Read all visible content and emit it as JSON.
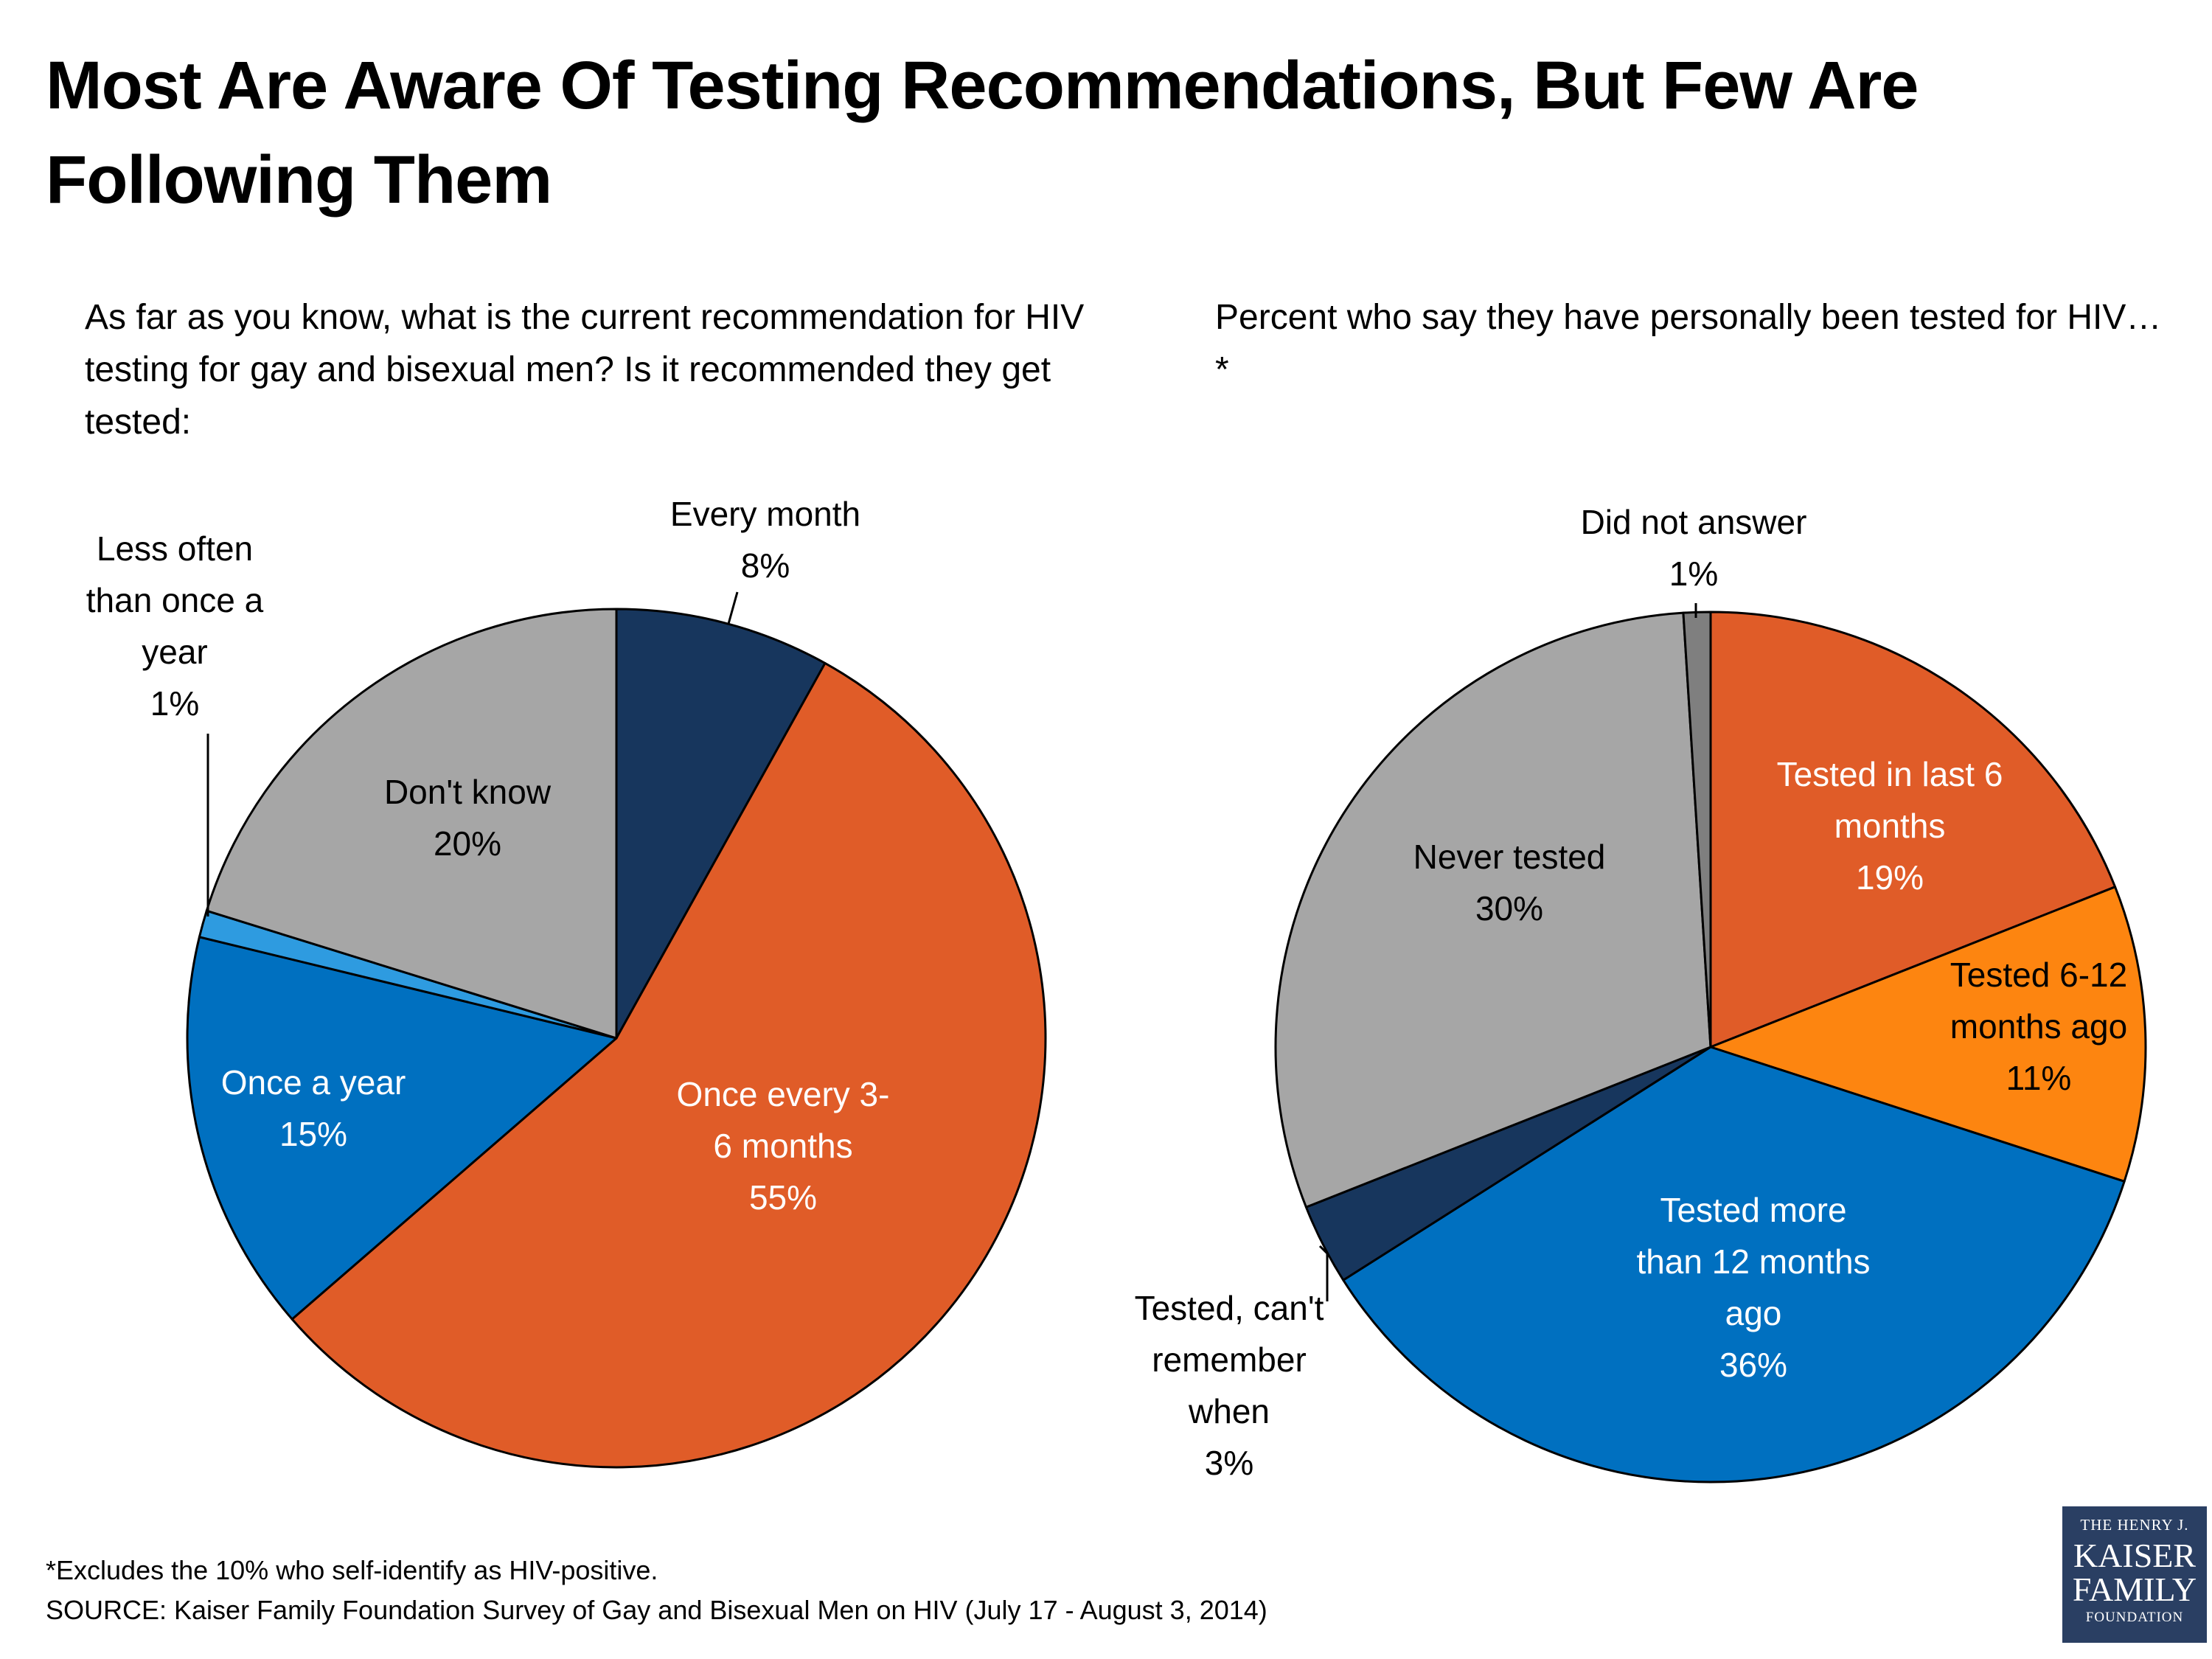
{
  "title": "Most Are Aware Of Testing Recommendations, But Few Are Following Them",
  "chart_data": [
    {
      "type": "pie",
      "title": "As far as you know, what is the current recommendation for HIV testing for gay and bisexual men?  Is it recommended they get tested:",
      "slices": [
        {
          "name": "Every month",
          "value": 8,
          "label": "8%",
          "color": "#17365d"
        },
        {
          "name": "Once every 3-6 months",
          "value": 55,
          "label": "55%",
          "color": "#e05c28"
        },
        {
          "name": "Once a year",
          "value": 15,
          "label": "15%",
          "color": "#0070c0"
        },
        {
          "name": "Less often than once a year",
          "value": 1,
          "label": "1%",
          "color": "#2e9be0"
        },
        {
          "name": "Don't know",
          "value": 20,
          "label": "20%",
          "color": "#a6a6a6"
        }
      ]
    },
    {
      "type": "pie",
      "title": "Percent who say they have personally been tested for HIV…*",
      "slices": [
        {
          "name": "Tested in last 6 months",
          "value": 19,
          "label": "19%",
          "color": "#e05c28"
        },
        {
          "name": "Tested 6-12 months ago",
          "value": 11,
          "label": "11%",
          "color": "#fd8510"
        },
        {
          "name": "Tested more than 12 months ago",
          "value": 36,
          "label": "36%",
          "color": "#0070c0"
        },
        {
          "name": "Tested, can't remember when",
          "value": 3,
          "label": "3%",
          "color": "#17365d"
        },
        {
          "name": "Never tested",
          "value": 30,
          "label": "30%",
          "color": "#a6a6a6"
        },
        {
          "name": "Did not answer",
          "value": 1,
          "label": "1%",
          "color": "#7f7f7f"
        }
      ]
    }
  ],
  "label_lines": {
    "left": [
      [
        "Every month",
        "8%"
      ],
      [
        "Once every 3-",
        "6 months",
        "55%"
      ],
      [
        "Once a year",
        "15%"
      ],
      [
        "Less often",
        "than once a",
        "year",
        "1%"
      ],
      [
        "Don't know",
        "20%"
      ]
    ],
    "right": [
      [
        "Tested in last 6",
        "months",
        "19%"
      ],
      [
        "Tested 6-12",
        "months ago",
        "11%"
      ],
      [
        "Tested more",
        "than 12 months",
        "ago",
        "36%"
      ],
      [
        "Tested, can't",
        "remember",
        "when",
        "3%"
      ],
      [
        "Never tested",
        "30%"
      ],
      [
        "Did not answer",
        "1%"
      ]
    ]
  },
  "footnotes": {
    "note": "*Excludes the 10% who self-identify as HIV-positive.",
    "source": "SOURCE: Kaiser Family Foundation Survey of Gay and Bisexual Men on HIV (July 17 - August 3, 2014)"
  },
  "logo": {
    "line1": "THE HENRY J.",
    "line2": "KAISER",
    "line3": "FAMILY",
    "line4": "FOUNDATION"
  }
}
